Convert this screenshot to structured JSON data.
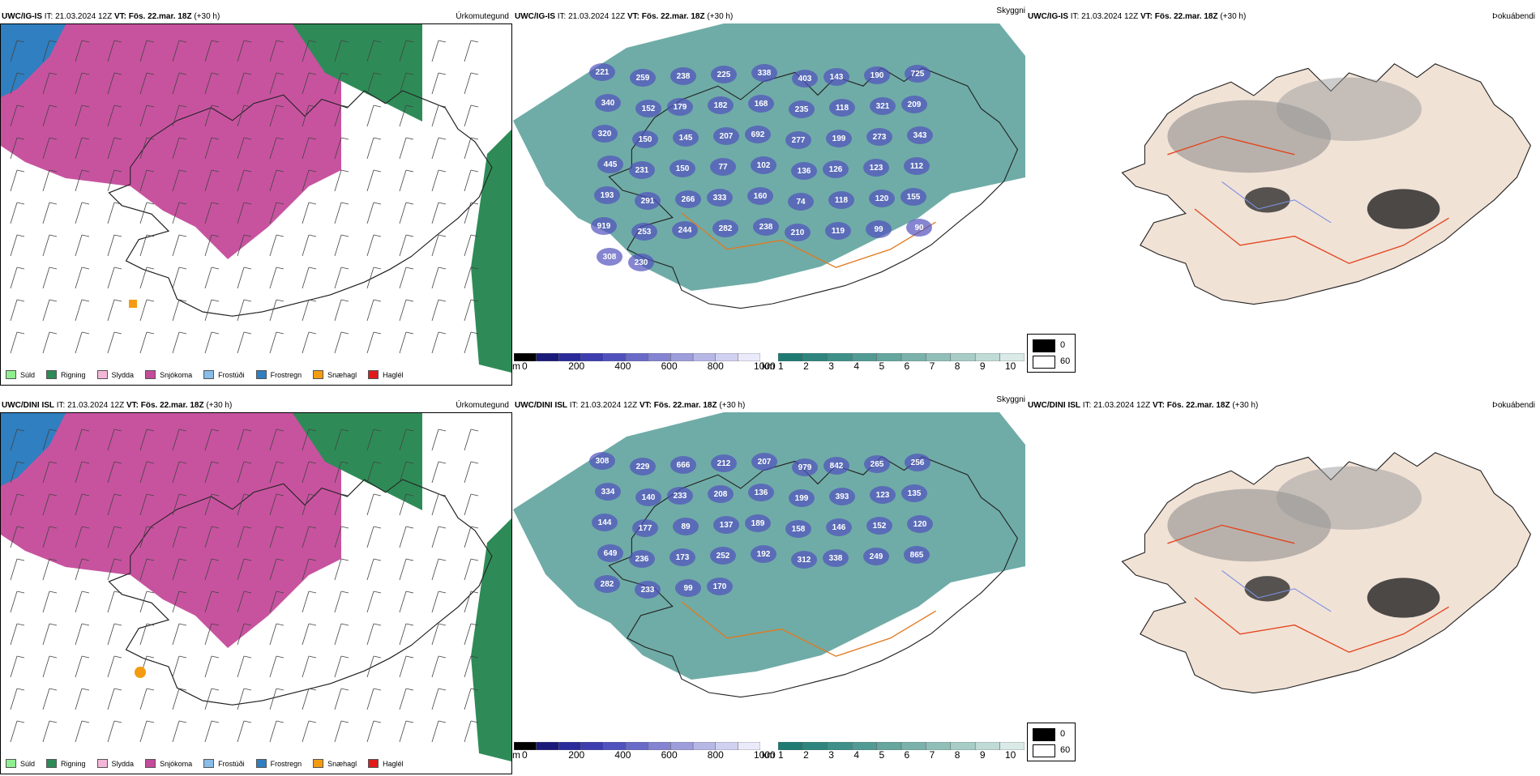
{
  "rows": [
    {
      "id": "ig",
      "panels": [
        {
          "model": "UWC/IG-IS",
          "it_label": "IT:",
          "it": "21.03.2024 12Z",
          "vt_label": "VT:",
          "vt": "Fös. 22.mar. 18Z",
          "lead": "(+30 h)",
          "field": "Úrkomutegund"
        },
        {
          "model": "UWC/IG-IS",
          "it_label": "IT:",
          "it": "21.03.2024 12Z",
          "vt_label": "VT:",
          "vt": "Fös. 22.mar. 18Z",
          "lead": "(+30 h)",
          "field": "Skyggni"
        },
        {
          "model": "UWC/IG-IS",
          "it_label": "IT:",
          "it": "21.03.2024 12Z",
          "vt_label": "VT:",
          "vt": "Fös. 22.mar. 18Z",
          "lead": "(+30 h)",
          "field": "Þokuábendi"
        }
      ],
      "cloud_labels": [
        "221",
        "259",
        "238",
        "225",
        "338",
        "403",
        "143",
        "190",
        "725",
        "340",
        "152",
        "179",
        "182",
        "168",
        "235",
        "118",
        "321",
        "209",
        "320",
        "150",
        "145",
        "207",
        "692",
        "277",
        "199",
        "273",
        "343",
        "445",
        "231",
        "150",
        "77",
        "102",
        "136",
        "126",
        "123",
        "112",
        "193",
        "291",
        "266",
        "333",
        "160",
        "74",
        "118",
        "120",
        "155",
        "919",
        "253",
        "244",
        "282",
        "238",
        "210",
        "119",
        "99",
        "90",
        "308",
        "230"
      ]
    },
    {
      "id": "dini",
      "panels": [
        {
          "model": "UWC/DINI ISL",
          "it_label": "IT:",
          "it": "21.03.2024 12Z",
          "vt_label": "VT:",
          "vt": "Fös. 22.mar. 18Z",
          "lead": "(+30 h)",
          "field": "Úrkomutegund"
        },
        {
          "model": "UWC/DINI ISL",
          "it_label": "IT:",
          "it": "21.03.2024 12Z",
          "vt_label": "VT:",
          "vt": "Fös. 22.mar. 18Z",
          "lead": "(+30 h)",
          "field": "Skyggni"
        },
        {
          "model": "UWC/DINI ISL",
          "it_label": "IT:",
          "it": "21.03.2024 12Z",
          "vt_label": "VT:",
          "vt": "Fös. 22.mar. 18Z",
          "lead": "(+30 h)",
          "field": "Þokuábendi"
        }
      ],
      "cloud_labels": [
        "308",
        "229",
        "666",
        "212",
        "207",
        "979",
        "842",
        "265",
        "256",
        "334",
        "140",
        "233",
        "208",
        "136",
        "199",
        "393",
        "123",
        "135",
        "144",
        "177",
        "89",
        "137",
        "189",
        "158",
        "146",
        "152",
        "120",
        "649",
        "236",
        "173",
        "252",
        "192",
        "312",
        "338",
        "249",
        "865",
        "282",
        "233",
        "99",
        "170"
      ]
    }
  ],
  "precip_legend": [
    {
      "label": "Súld",
      "color": "#90ee90"
    },
    {
      "label": "Rigning",
      "color": "#2e8b57"
    },
    {
      "label": "Slydda",
      "color": "#f4b6d8"
    },
    {
      "label": "Snjókoma",
      "color": "#c44a9a"
    },
    {
      "label": "Frostúði",
      "color": "#87bde8"
    },
    {
      "label": "Frostregn",
      "color": "#2f7fc1"
    },
    {
      "label": "Snæhagl",
      "color": "#f39c12"
    },
    {
      "label": "Haglél",
      "color": "#e01b1b"
    }
  ],
  "cloud_base_colorbar": {
    "unit": "m",
    "ticks": [
      "0",
      "200",
      "400",
      "600",
      "800",
      "1000"
    ],
    "colors": [
      "#000000",
      "#1a1a7a",
      "#2a2a9a",
      "#3d3daf",
      "#5151bd",
      "#6a6ac8",
      "#8484d2",
      "#9d9ddc",
      "#b7b7e6",
      "#d0d0f0",
      "#eaeafa"
    ]
  },
  "visibility_colorbar": {
    "unit": "km",
    "ticks": [
      "1",
      "2",
      "3",
      "4",
      "5",
      "6",
      "7",
      "8",
      "9",
      "10"
    ],
    "colors": [
      "#1f7a72",
      "#2e857d",
      "#3f9089",
      "#519b94",
      "#65a69f",
      "#7ab2ab",
      "#90bfb8",
      "#a8cdc7",
      "#c0dbd6",
      "#d9eae7"
    ]
  },
  "fog_legend": [
    {
      "value": "0",
      "color": "#000000"
    },
    {
      "value": "60",
      "color": "#ffffff"
    }
  ]
}
